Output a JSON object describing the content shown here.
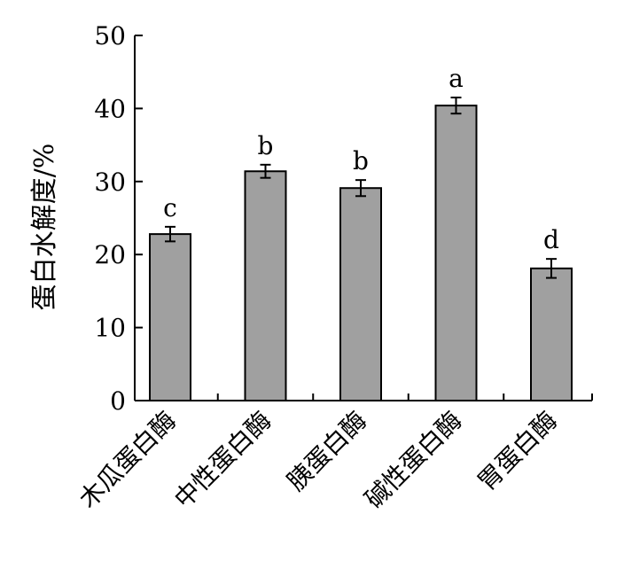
{
  "chart_data": {
    "type": "bar",
    "title": "",
    "xlabel": "",
    "ylabel": "蛋白水解度/%",
    "categories": [
      "木瓜蛋白酶",
      "中性蛋白酶",
      "胰蛋白酶",
      "碱性蛋白酶",
      "胃蛋白酶"
    ],
    "values": [
      22.8,
      31.4,
      29.1,
      40.4,
      18.1
    ],
    "errors": [
      1.0,
      0.9,
      1.1,
      1.1,
      1.3
    ],
    "significance_labels": [
      "c",
      "b",
      "b",
      "a",
      "d"
    ],
    "ylim": [
      0,
      50
    ],
    "yticks": [
      0,
      10,
      20,
      30,
      40,
      50
    ],
    "grid": false,
    "legend": "none",
    "bar_color": "#a0a0a0",
    "bar_edge_color": "#000000"
  }
}
